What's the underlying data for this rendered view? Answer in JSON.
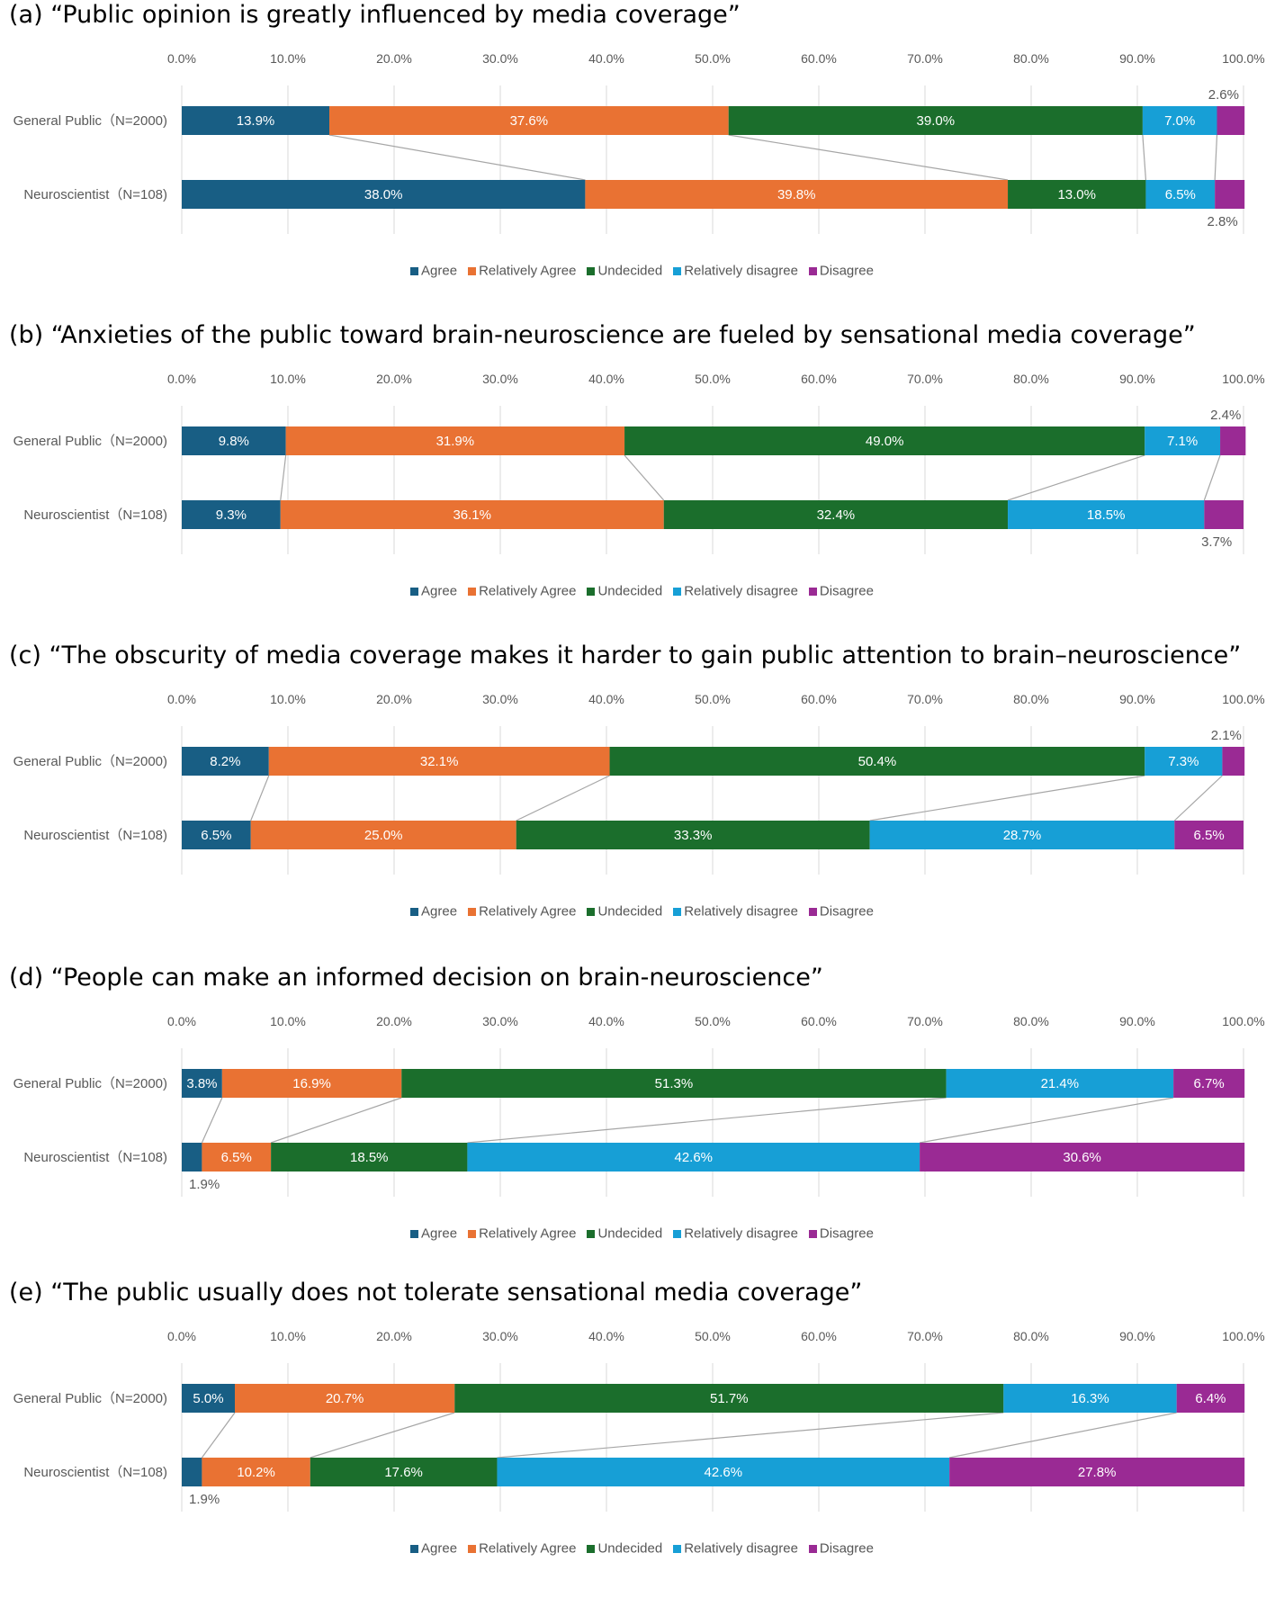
{
  "colors": {
    "agree": "#185e84",
    "relatively_agree": "#e97233",
    "undecided": "#1b6e2c",
    "relatively_disagree": "#179fd6",
    "disagree": "#9a2a94",
    "grid": "#d9d9d9",
    "connector": "#a6a6a6",
    "text": "#595959"
  },
  "legend": [
    "Agree",
    "Relatively Agree",
    "Undecided",
    "Relatively disagree",
    "Disagree"
  ],
  "chart_data": [
    {
      "type": "bar",
      "stacked": true,
      "orientation": "horizontal",
      "title": "(a) “Public opinion is greatly influenced by media coverage”",
      "xlim": [
        0,
        100
      ],
      "x_ticks": [
        "0.0%",
        "10.0%",
        "20.0%",
        "30.0%",
        "40.0%",
        "50.0%",
        "60.0%",
        "70.0%",
        "80.0%",
        "90.0%",
        "100.0%"
      ],
      "categories": [
        "General Public（N=2000)",
        "Neuroscientist（N=108)"
      ],
      "series": [
        {
          "name": "Agree",
          "values": [
            13.9,
            38.0
          ]
        },
        {
          "name": "Relatively Agree",
          "values": [
            37.6,
            39.8
          ]
        },
        {
          "name": "Undecided",
          "values": [
            39.0,
            13.0
          ]
        },
        {
          "name": "Relatively disagree",
          "values": [
            7.0,
            6.5
          ]
        },
        {
          "name": "Disagree",
          "values": [
            2.6,
            2.8
          ]
        }
      ],
      "legend_position": "bottom",
      "grid": true
    },
    {
      "type": "bar",
      "stacked": true,
      "orientation": "horizontal",
      "title": "(b) “Anxieties of the public toward brain-neuroscience are fueled by sensational media coverage”",
      "xlim": [
        0,
        100
      ],
      "x_ticks": [
        "0.0%",
        "10.0%",
        "20.0%",
        "30.0%",
        "40.0%",
        "50.0%",
        "60.0%",
        "70.0%",
        "80.0%",
        "90.0%",
        "100.0%"
      ],
      "categories": [
        "General Public（N=2000)",
        "Neuroscientist（N=108)"
      ],
      "series": [
        {
          "name": "Agree",
          "values": [
            9.8,
            9.3
          ]
        },
        {
          "name": "Relatively Agree",
          "values": [
            31.9,
            36.1
          ]
        },
        {
          "name": "Undecided",
          "values": [
            49.0,
            32.4
          ]
        },
        {
          "name": "Relatively disagree",
          "values": [
            7.1,
            18.5
          ]
        },
        {
          "name": "Disagree",
          "values": [
            2.4,
            3.7
          ]
        }
      ],
      "legend_position": "bottom",
      "grid": true
    },
    {
      "type": "bar",
      "stacked": true,
      "orientation": "horizontal",
      "title": "(c) “The obscurity of media coverage makes it harder to gain public attention to brain–neuroscience”",
      "xlim": [
        0,
        100
      ],
      "x_ticks": [
        "0.0%",
        "10.0%",
        "20.0%",
        "30.0%",
        "40.0%",
        "50.0%",
        "60.0%",
        "70.0%",
        "80.0%",
        "90.0%",
        "100.0%"
      ],
      "categories": [
        "General Public（N=2000)",
        "Neuroscientist（N=108)"
      ],
      "series": [
        {
          "name": "Agree",
          "values": [
            8.2,
            6.5
          ]
        },
        {
          "name": "Relatively Agree",
          "values": [
            32.1,
            25.0
          ]
        },
        {
          "name": "Undecided",
          "values": [
            50.4,
            33.3
          ]
        },
        {
          "name": "Relatively disagree",
          "values": [
            7.3,
            28.7
          ]
        },
        {
          "name": "Disagree",
          "values": [
            2.1,
            6.5
          ]
        }
      ],
      "legend_position": "bottom",
      "grid": true
    },
    {
      "type": "bar",
      "stacked": true,
      "orientation": "horizontal",
      "title": "(d) “People can make an informed decision on brain-neuroscience”",
      "xlim": [
        0,
        100
      ],
      "x_ticks": [
        "0.0%",
        "10.0%",
        "20.0%",
        "30.0%",
        "40.0%",
        "50.0%",
        "60.0%",
        "70.0%",
        "80.0%",
        "90.0%",
        "100.0%"
      ],
      "categories": [
        "General Public（N=2000)",
        "Neuroscientist（N=108)"
      ],
      "series": [
        {
          "name": "Agree",
          "values": [
            3.8,
            1.9
          ]
        },
        {
          "name": "Relatively Agree",
          "values": [
            16.9,
            6.5
          ]
        },
        {
          "name": "Undecided",
          "values": [
            51.3,
            18.5
          ]
        },
        {
          "name": "Relatively disagree",
          "values": [
            21.4,
            42.6
          ]
        },
        {
          "name": "Disagree",
          "values": [
            6.7,
            30.6
          ]
        }
      ],
      "legend_position": "bottom",
      "grid": true
    },
    {
      "type": "bar",
      "stacked": true,
      "orientation": "horizontal",
      "title": "(e) “The public usually does not tolerate sensational media coverage”",
      "xlim": [
        0,
        100
      ],
      "x_ticks": [
        "0.0%",
        "10.0%",
        "20.0%",
        "30.0%",
        "40.0%",
        "50.0%",
        "60.0%",
        "70.0%",
        "80.0%",
        "90.0%",
        "100.0%"
      ],
      "categories": [
        "General Public（N=2000)",
        "Neuroscientist（N=108)"
      ],
      "series": [
        {
          "name": "Agree",
          "values": [
            5.0,
            1.9
          ]
        },
        {
          "name": "Relatively Agree",
          "values": [
            20.7,
            10.2
          ]
        },
        {
          "name": "Undecided",
          "values": [
            51.7,
            17.6
          ]
        },
        {
          "name": "Relatively disagree",
          "values": [
            16.3,
            42.6
          ]
        },
        {
          "name": "Disagree",
          "values": [
            6.4,
            27.8
          ]
        }
      ],
      "legend_position": "bottom",
      "grid": true
    }
  ]
}
